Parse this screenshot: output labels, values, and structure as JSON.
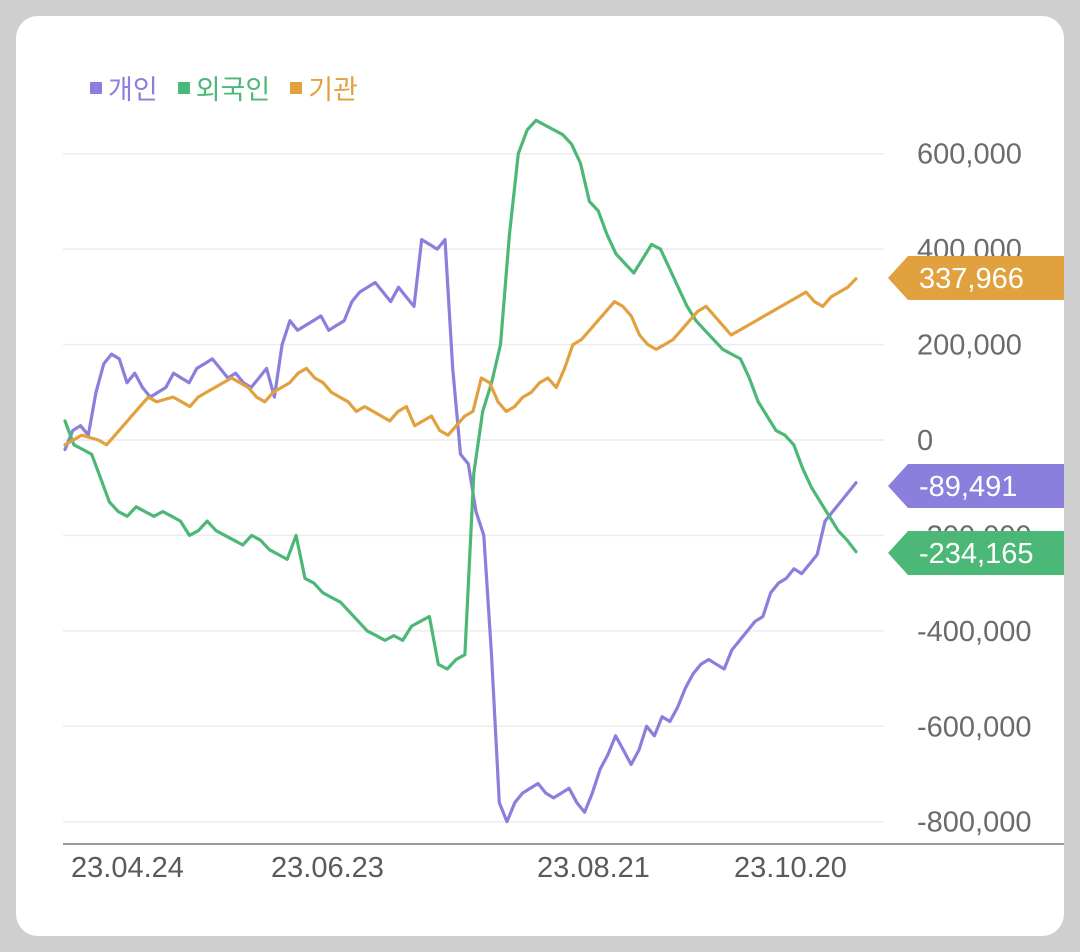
{
  "chart_data": {
    "type": "line",
    "title": "",
    "xlabel": "",
    "ylabel": "",
    "x_ticks": [
      "23.04.24",
      "23.06.23",
      "23.08.21",
      "23.10.20"
    ],
    "y_ticks": [
      600000,
      400000,
      200000,
      0,
      -200000,
      -400000,
      -600000,
      -800000
    ],
    "y_tick_labels": [
      "600,000",
      "400,000",
      "200,000",
      "0",
      "-200,000",
      "-400,000",
      "-600,000",
      "-800,000"
    ],
    "ylim": [
      -820000,
      640000
    ],
    "grid": true,
    "legend": "top-left",
    "series": [
      {
        "name": "개인",
        "color": "#8a7fdc",
        "last_label": "-89,491",
        "values": [
          -20000,
          20000,
          30000,
          10000,
          100000,
          160000,
          180000,
          170000,
          120000,
          140000,
          110000,
          90000,
          100000,
          110000,
          140000,
          130000,
          120000,
          150000,
          160000,
          170000,
          150000,
          130000,
          140000,
          120000,
          110000,
          130000,
          150000,
          90000,
          200000,
          250000,
          230000,
          240000,
          250000,
          260000,
          230000,
          240000,
          250000,
          290000,
          310000,
          320000,
          330000,
          310000,
          290000,
          320000,
          300000,
          280000,
          420000,
          410000,
          400000,
          420000,
          150000,
          -30000,
          -50000,
          -150000,
          -200000,
          -450000,
          -760000,
          -800000,
          -760000,
          -740000,
          -730000,
          -720000,
          -740000,
          -750000,
          -740000,
          -730000,
          -760000,
          -780000,
          -740000,
          -690000,
          -660000,
          -620000,
          -650000,
          -680000,
          -650000,
          -600000,
          -620000,
          -580000,
          -590000,
          -560000,
          -520000,
          -490000,
          -470000,
          -460000,
          -470000,
          -480000,
          -440000,
          -420000,
          -400000,
          -380000,
          -370000,
          -320000,
          -300000,
          -290000,
          -270000,
          -280000,
          -260000,
          -240000,
          -170000,
          -150000,
          -130000,
          -110000,
          -89491
        ]
      },
      {
        "name": "외국인",
        "color": "#4cb877",
        "last_label": "-234,165",
        "values": [
          40000,
          -10000,
          -20000,
          -30000,
          -80000,
          -130000,
          -150000,
          -160000,
          -140000,
          -150000,
          -160000,
          -150000,
          -160000,
          -170000,
          -200000,
          -190000,
          -170000,
          -190000,
          -200000,
          -210000,
          -220000,
          -200000,
          -210000,
          -230000,
          -240000,
          -250000,
          -200000,
          -290000,
          -300000,
          -320000,
          -330000,
          -340000,
          -360000,
          -380000,
          -400000,
          -410000,
          -420000,
          -410000,
          -420000,
          -390000,
          -380000,
          -370000,
          -470000,
          -480000,
          -460000,
          -450000,
          -70000,
          60000,
          120000,
          200000,
          430000,
          600000,
          650000,
          670000,
          660000,
          650000,
          640000,
          620000,
          580000,
          500000,
          480000,
          430000,
          390000,
          370000,
          350000,
          380000,
          410000,
          400000,
          360000,
          320000,
          280000,
          250000,
          230000,
          210000,
          190000,
          180000,
          170000,
          130000,
          80000,
          50000,
          20000,
          10000,
          -10000,
          -60000,
          -100000,
          -130000,
          -160000,
          -190000,
          -210000,
          -234165
        ]
      },
      {
        "name": "기관",
        "color": "#e2a13f",
        "last_label": "337,966",
        "values": [
          -10000,
          0,
          10000,
          5000,
          0,
          -10000,
          10000,
          30000,
          50000,
          70000,
          90000,
          80000,
          85000,
          90000,
          80000,
          70000,
          90000,
          100000,
          110000,
          120000,
          130000,
          120000,
          110000,
          90000,
          80000,
          100000,
          110000,
          120000,
          140000,
          150000,
          130000,
          120000,
          100000,
          90000,
          80000,
          60000,
          70000,
          60000,
          50000,
          40000,
          60000,
          70000,
          30000,
          40000,
          50000,
          20000,
          10000,
          30000,
          50000,
          60000,
          130000,
          120000,
          80000,
          60000,
          70000,
          90000,
          100000,
          120000,
          130000,
          110000,
          150000,
          200000,
          210000,
          230000,
          250000,
          270000,
          290000,
          280000,
          260000,
          220000,
          200000,
          190000,
          200000,
          210000,
          230000,
          250000,
          270000,
          280000,
          260000,
          240000,
          220000,
          230000,
          240000,
          250000,
          260000,
          270000,
          280000,
          290000,
          300000,
          310000,
          290000,
          280000,
          300000,
          310000,
          320000,
          337966
        ]
      }
    ]
  }
}
